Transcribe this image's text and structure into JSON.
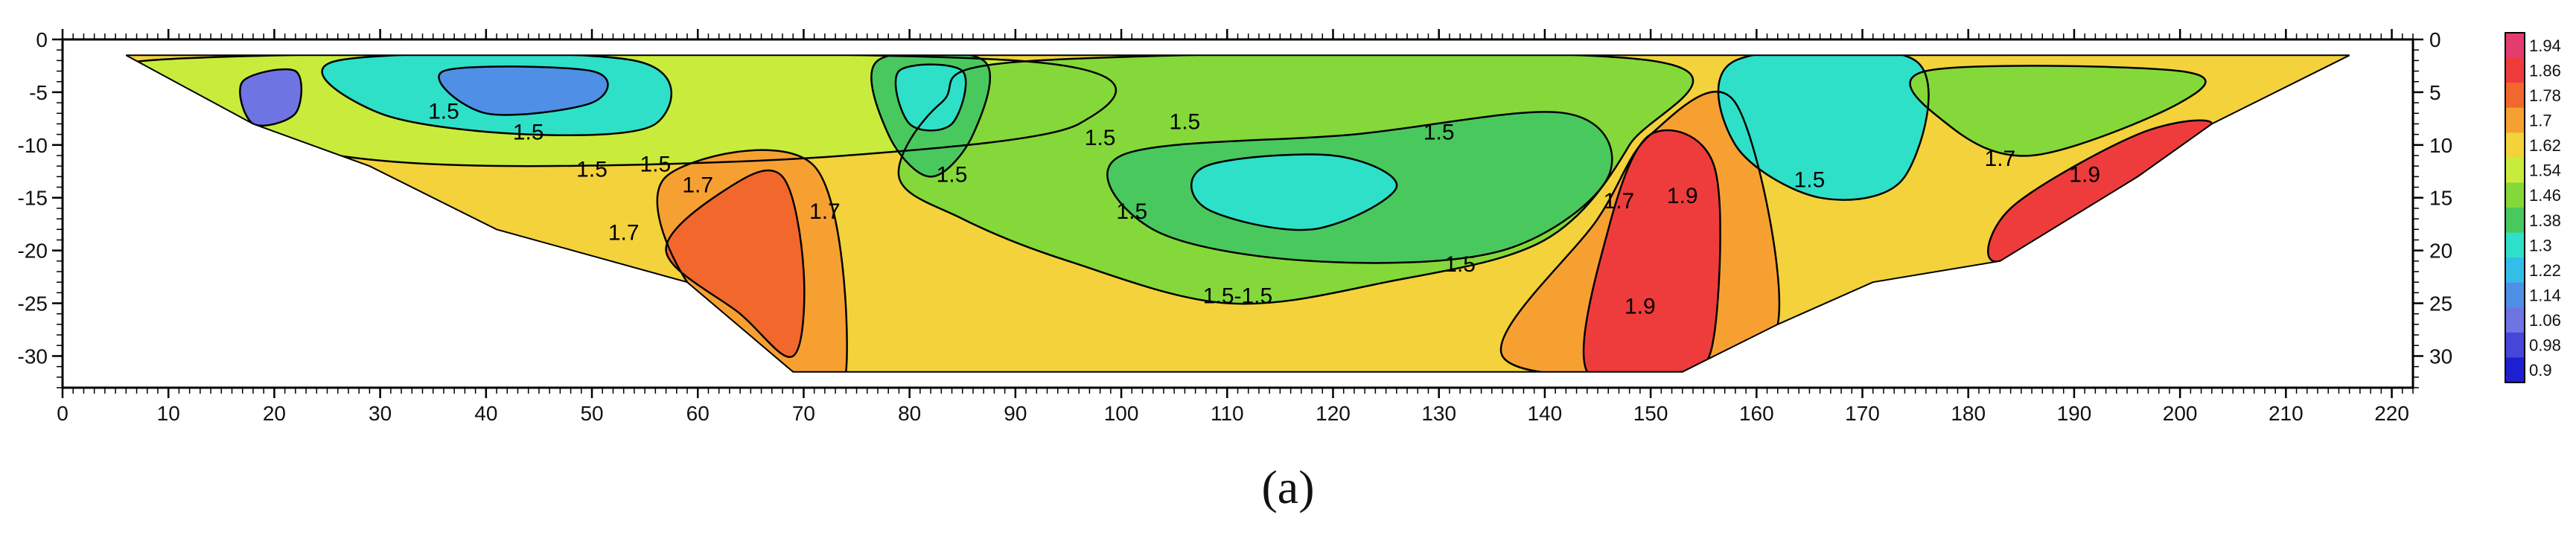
{
  "caption": "(a)",
  "chart_data": {
    "type": "heatmap",
    "title": "",
    "xlabel": "",
    "ylabel": "",
    "xlim": [
      0,
      222
    ],
    "ylim": [
      -33,
      0
    ],
    "x_ticks": [
      0,
      10,
      20,
      30,
      40,
      50,
      60,
      70,
      80,
      90,
      100,
      110,
      120,
      130,
      140,
      150,
      160,
      170,
      180,
      190,
      200,
      210,
      220
    ],
    "y_ticks_left": [
      0,
      -5,
      -10,
      -15,
      -20,
      -25,
      -30
    ],
    "y_tick_labels_left": [
      "0",
      "-5",
      "-10",
      "-15",
      "-20",
      "-25",
      "-30"
    ],
    "y_tick_labels_right": [
      "0",
      "5",
      "10",
      "15",
      "20",
      "25",
      "30"
    ],
    "colorbar": {
      "values": [
        1.94,
        1.86,
        1.78,
        1.7,
        1.62,
        1.54,
        1.46,
        1.38,
        1.3,
        1.22,
        1.14,
        1.06,
        0.98,
        0.9
      ],
      "labels": [
        "1.94",
        "1.86",
        "1.78",
        "1.7",
        "1.62",
        "1.54",
        "1.46",
        "1.38",
        "1.3",
        "1.22",
        "1.14",
        "1.06",
        "0.98",
        "0.9"
      ],
      "colors": [
        "#e53c6f",
        "#ee3c3c",
        "#f2682c",
        "#f7a032",
        "#f3d23c",
        "#c9ec3c",
        "#84d83a",
        "#49c85e",
        "#2ee0c8",
        "#34bde8",
        "#4f8fe6",
        "#6f74e3",
        "#4646d8",
        "#1f1fd2"
      ]
    },
    "domain_outline": [
      [
        6,
        -1.5
      ],
      [
        216,
        -1.5
      ],
      [
        203,
        -8
      ],
      [
        196,
        -13
      ],
      [
        183,
        -21
      ],
      [
        171,
        -23
      ],
      [
        162,
        -27
      ],
      [
        153,
        -31.5
      ],
      [
        69,
        -31.5
      ],
      [
        59,
        -23
      ],
      [
        41,
        -18
      ],
      [
        29,
        -12
      ],
      [
        18,
        -8
      ],
      [
        6,
        -1.5
      ]
    ],
    "zones": [
      {
        "value": 1.62,
        "points": [
          [
            6,
            -1.5
          ],
          [
            216,
            -1.5
          ],
          [
            203,
            -8
          ],
          [
            196,
            -13
          ],
          [
            183,
            -21
          ],
          [
            171,
            -23
          ],
          [
            162,
            -27
          ],
          [
            153,
            -31.5
          ],
          [
            69,
            -31.5
          ],
          [
            59,
            -23
          ],
          [
            41,
            -18
          ],
          [
            29,
            -12
          ],
          [
            18,
            -8
          ]
        ]
      },
      {
        "value": 1.54,
        "points": [
          [
            8,
            -2
          ],
          [
            90,
            -2
          ],
          [
            96,
            -8
          ],
          [
            74,
            -11
          ],
          [
            44,
            -12
          ],
          [
            26,
            -11
          ],
          [
            17,
            -8
          ]
        ]
      },
      {
        "value": 1.46,
        "points": [
          [
            92,
            -2
          ],
          [
            150,
            -2
          ],
          [
            148,
            -10
          ],
          [
            140,
            -19
          ],
          [
            125,
            -23
          ],
          [
            110,
            -25
          ],
          [
            95,
            -21
          ],
          [
            85,
            -17
          ],
          [
            79,
            -13
          ],
          [
            83,
            -6
          ]
        ]
      },
      {
        "value": 1.38,
        "points": [
          [
            100,
            -11
          ],
          [
            122,
            -9
          ],
          [
            142,
            -7
          ],
          [
            146,
            -13
          ],
          [
            136,
            -20
          ],
          [
            118,
            -21
          ],
          [
            103,
            -18
          ]
        ]
      },
      {
        "value": 1.3,
        "points": [
          [
            108,
            -12
          ],
          [
            120,
            -11
          ],
          [
            126,
            -14
          ],
          [
            118,
            -18
          ],
          [
            108,
            -16
          ]
        ]
      },
      {
        "value": 1.38,
        "points": [
          [
            77,
            -2
          ],
          [
            87,
            -2
          ],
          [
            86,
            -9
          ],
          [
            82,
            -13
          ],
          [
            78,
            -9
          ]
        ]
      },
      {
        "value": 1.3,
        "points": [
          [
            79,
            -3
          ],
          [
            85,
            -3
          ],
          [
            84,
            -8
          ],
          [
            80,
            -8
          ]
        ]
      },
      {
        "value": 1.3,
        "points": [
          [
            26,
            -2
          ],
          [
            54,
            -2
          ],
          [
            56,
            -8
          ],
          [
            44,
            -9
          ],
          [
            30,
            -7
          ]
        ]
      },
      {
        "value": 1.14,
        "points": [
          [
            36,
            -3
          ],
          [
            50,
            -3
          ],
          [
            50,
            -6
          ],
          [
            40,
            -7
          ]
        ]
      },
      {
        "value": 1.06,
        "points": [
          [
            17,
            -4
          ],
          [
            22,
            -3
          ],
          [
            22,
            -7
          ],
          [
            18,
            -8
          ]
        ]
      },
      {
        "value": 1.7,
        "points": [
          [
            57,
            -13
          ],
          [
            71,
            -12
          ],
          [
            74,
            -31.5
          ],
          [
            69,
            -31.5
          ],
          [
            59,
            -23
          ]
        ]
      },
      {
        "value": 1.78,
        "points": [
          [
            57,
            -20
          ],
          [
            63,
            -14
          ],
          [
            68,
            -13
          ],
          [
            70,
            -22
          ],
          [
            69,
            -30
          ],
          [
            64,
            -26
          ]
        ]
      },
      {
        "value": 1.7,
        "points": [
          [
            136,
            -30
          ],
          [
            145,
            -17
          ],
          [
            150,
            -9
          ],
          [
            158,
            -6
          ],
          [
            162,
            -27
          ],
          [
            153,
            -31.5
          ]
        ]
      },
      {
        "value": 1.86,
        "points": [
          [
            144,
            -31.5
          ],
          [
            146,
            -18
          ],
          [
            150,
            -9
          ],
          [
            156,
            -12
          ],
          [
            156,
            -28
          ],
          [
            153,
            -31.5
          ]
        ]
      },
      {
        "value": 1.3,
        "points": [
          [
            158,
            -2
          ],
          [
            175,
            -2
          ],
          [
            174,
            -13
          ],
          [
            166,
            -15
          ],
          [
            158,
            -10
          ]
        ]
      },
      {
        "value": 1.46,
        "points": [
          [
            176,
            -3
          ],
          [
            200,
            -3
          ],
          [
            200,
            -6
          ],
          [
            186,
            -11
          ],
          [
            178,
            -8
          ]
        ]
      },
      {
        "value": 1.86,
        "points": [
          [
            184,
            -16
          ],
          [
            196,
            -9
          ],
          [
            203,
            -8
          ],
          [
            196,
            -13
          ],
          [
            183,
            -21
          ]
        ]
      }
    ],
    "contour_labels": [
      {
        "x": 36,
        "y": -7.5,
        "text": "1.5"
      },
      {
        "x": 44,
        "y": -9.5,
        "text": "1.5"
      },
      {
        "x": 50,
        "y": -13,
        "text": "1.5"
      },
      {
        "x": 56,
        "y": -12.5,
        "text": "1.5"
      },
      {
        "x": 60,
        "y": -14.5,
        "text": "1.7"
      },
      {
        "x": 53,
        "y": -19,
        "text": "1.7"
      },
      {
        "x": 72,
        "y": -17,
        "text": "1.7"
      },
      {
        "x": 84,
        "y": -13.5,
        "text": "1.5"
      },
      {
        "x": 98,
        "y": -10,
        "text": "1.5"
      },
      {
        "x": 101,
        "y": -17,
        "text": "1.5"
      },
      {
        "x": 106,
        "y": -8.5,
        "text": "1.5"
      },
      {
        "x": 111,
        "y": -25,
        "text": "1.5-1.5"
      },
      {
        "x": 132,
        "y": -22,
        "text": "1.5"
      },
      {
        "x": 130,
        "y": -9.5,
        "text": "1.5"
      },
      {
        "x": 147,
        "y": -16,
        "text": "1.7"
      },
      {
        "x": 153,
        "y": -15.5,
        "text": "1.9"
      },
      {
        "x": 149,
        "y": -26,
        "text": "1.9"
      },
      {
        "x": 165,
        "y": -14,
        "text": "1.5"
      },
      {
        "x": 183,
        "y": -12,
        "text": "1.7"
      },
      {
        "x": 191,
        "y": -13.5,
        "text": "1.9"
      }
    ]
  }
}
